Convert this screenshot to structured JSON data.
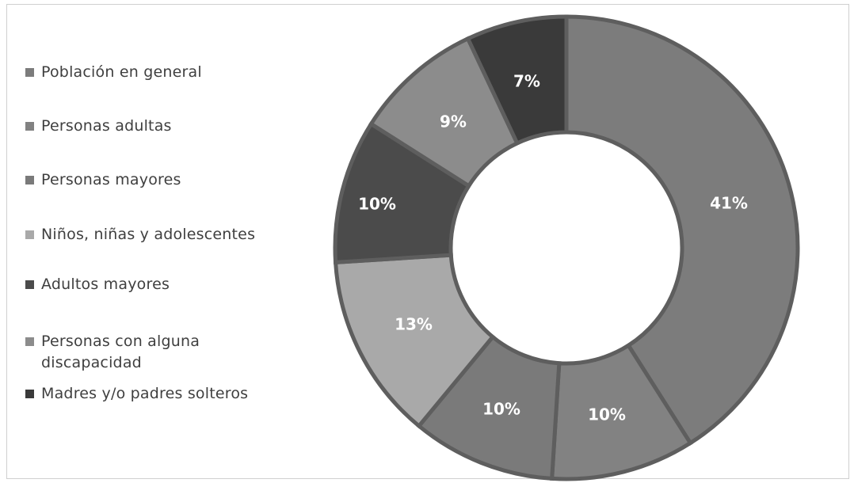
{
  "chart_data": {
    "type": "pie",
    "subtype": "donut",
    "title": "",
    "legend_position": "left",
    "categories": [
      "Población en general",
      "Personas adultas",
      "Personas mayores",
      "Niños, niñas y adolescentes",
      "Adultos mayores",
      "Personas con alguna discapacidad",
      "Madres y/o padres solteros"
    ],
    "legend_lines": [
      [
        "Población en general"
      ],
      [
        "Personas adultas"
      ],
      [
        "Personas mayores"
      ],
      [
        "Niños, niñas y adolescentes"
      ],
      [
        "Adultos mayores"
      ],
      [
        "Personas con alguna",
        "discapacidad"
      ],
      [
        "Madres y/o padres solteros"
      ]
    ],
    "values": [
      41,
      10,
      10,
      13,
      10,
      9,
      7
    ],
    "data_labels": [
      "41%",
      "10%",
      "10%",
      "13%",
      "10%",
      "9%",
      "7%"
    ],
    "colors": [
      "#7c7c7c",
      "#828282",
      "#7a7a7a",
      "#a9a9a9",
      "#4b4b4b",
      "#8c8c8c",
      "#3a3a3a"
    ],
    "unit": "%"
  }
}
